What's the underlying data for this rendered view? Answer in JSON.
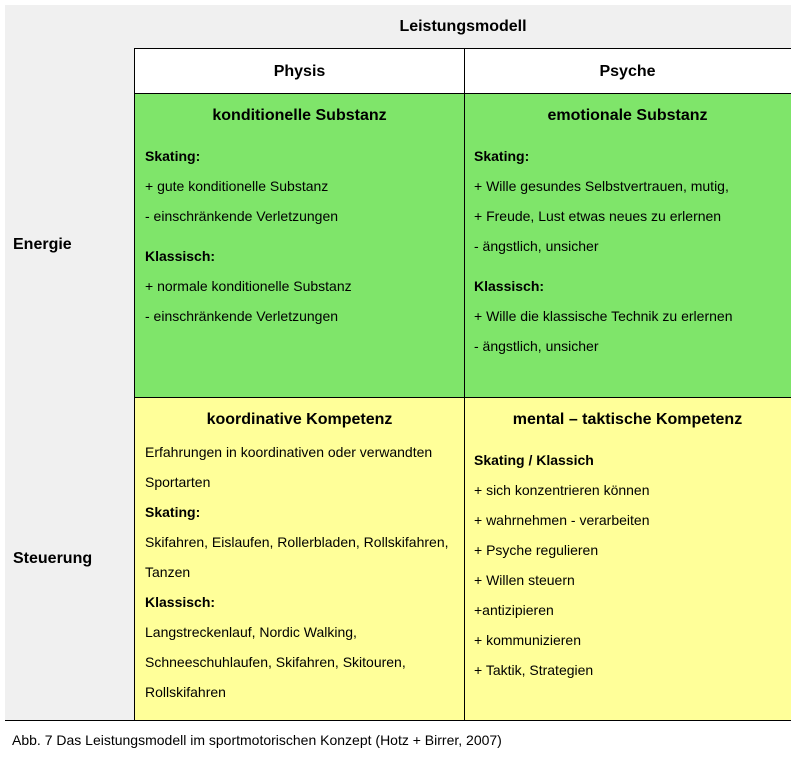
{
  "header": {
    "title": "Leistungsmodell"
  },
  "columns": [
    "Physis",
    "Psyche"
  ],
  "rows": [
    {
      "label": "Energie",
      "cells": [
        {
          "title": "konditionelle Substanz",
          "sections": [
            {
              "heading": "Skating:",
              "lines": [
                "+ gute konditionelle Substanz",
                "- einschränkende Verletzungen"
              ]
            },
            {
              "heading": "Klassisch:",
              "lines": [
                "+ normale konditionelle Substanz",
                "- einschränkende Verletzungen"
              ]
            }
          ]
        },
        {
          "title": "emotionale Substanz",
          "sections": [
            {
              "heading": "Skating:",
              "lines": [
                "+ Wille gesundes Selbstvertrauen, mutig,",
                "+ Freude, Lust etwas neues zu erlernen",
                "- ängstlich, unsicher"
              ]
            },
            {
              "heading": "Klassisch:",
              "lines": [
                "+ Wille die klassische Technik zu erlernen",
                "- ängstlich, unsicher"
              ]
            }
          ]
        }
      ]
    },
    {
      "label": "Steuerung",
      "cells": [
        {
          "title": "koordinative Kompetenz",
          "intro": "Erfahrungen in koordinativen oder verwandten Sportarten",
          "sections": [
            {
              "heading": "Skating:",
              "lines": [
                "Skifahren, Eislaufen, Rollerbladen, Rollskifahren, Tanzen"
              ]
            },
            {
              "heading": "Klassisch:",
              "lines": [
                "Langstreckenlauf, Nordic Walking, Schneeschuhlaufen, Skifahren, Skitouren, Rollskifahren"
              ]
            }
          ]
        },
        {
          "title": "mental – taktische Kompetenz",
          "sections": [
            {
              "heading": "Skating / Klassich",
              "lines": [
                "+ sich konzentrieren können",
                "+ wahrnehmen - verarbeiten",
                "+ Psyche regulieren",
                "+ Willen steuern",
                "+antizipieren",
                "+ kommunizieren",
                "+ Taktik, Strategien"
              ]
            }
          ]
        }
      ]
    }
  ],
  "caption": "Abb. 7 Das Leistungsmodell im sportmotorischen Konzept (Hotz + Birrer, 2007)"
}
